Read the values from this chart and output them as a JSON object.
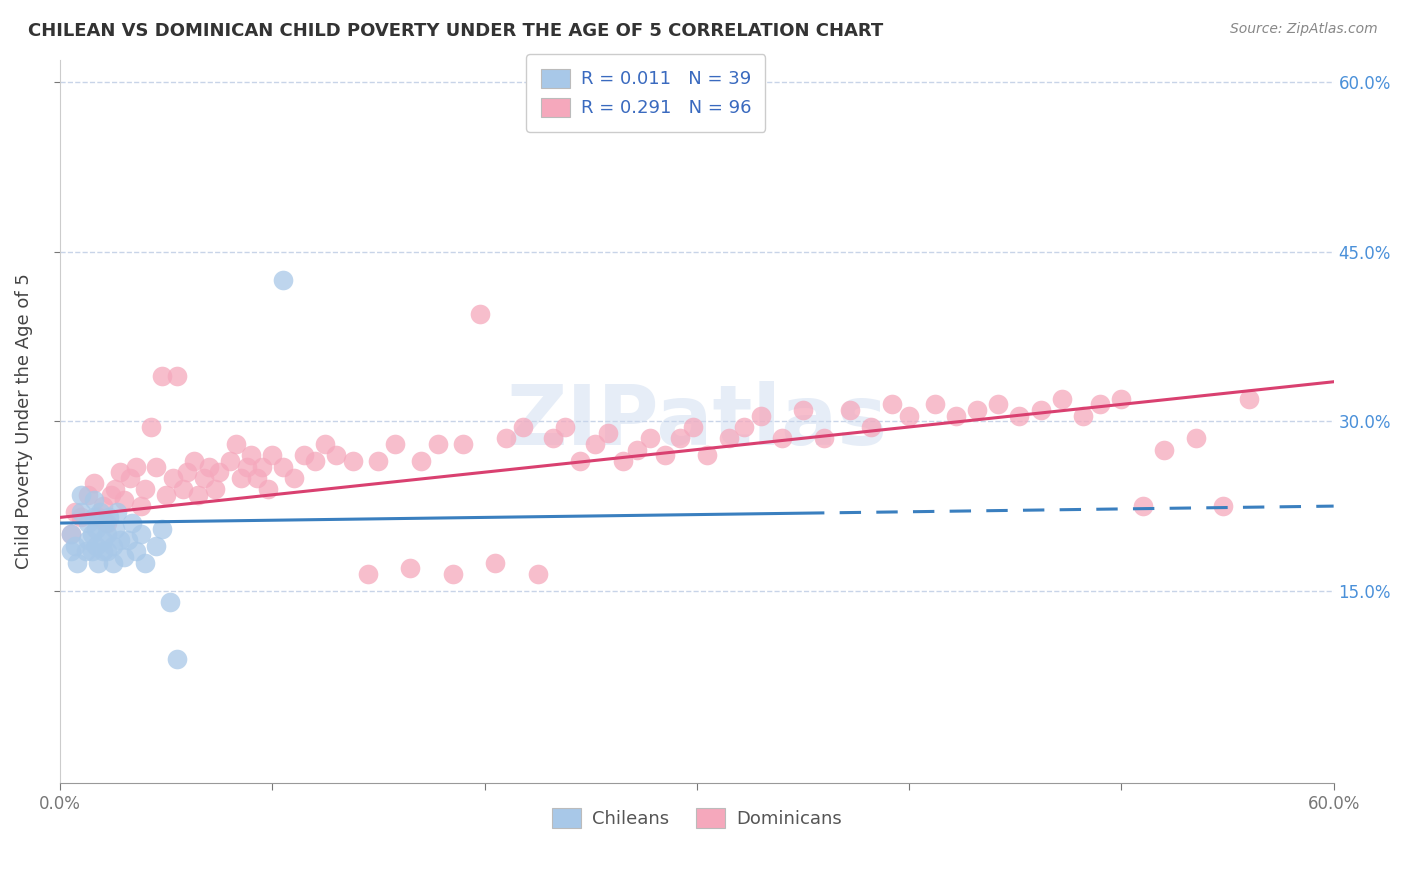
{
  "title": "CHILEAN VS DOMINICAN CHILD POVERTY UNDER THE AGE OF 5 CORRELATION CHART",
  "source": "Source: ZipAtlas.com",
  "ylabel": "Child Poverty Under the Age of 5",
  "xlim": [
    0.0,
    0.6
  ],
  "ylim": [
    -0.02,
    0.62
  ],
  "xticks": [
    0.0,
    0.1,
    0.2,
    0.3,
    0.4,
    0.5,
    0.6
  ],
  "xticklabels": [
    "0.0%",
    "",
    "",
    "",
    "",
    "",
    "60.0%"
  ],
  "yticks_right": [
    0.15,
    0.3,
    0.45,
    0.6
  ],
  "ytick_right_labels": [
    "15.0%",
    "30.0%",
    "45.0%",
    "60.0%"
  ],
  "chilean_color": "#a8c8e8",
  "dominican_color": "#f5a8bc",
  "chilean_line_color": "#3a7fbf",
  "dominican_line_color": "#d94070",
  "background_color": "#ffffff",
  "grid_color": "#c8d4e8",
  "watermark": "ZIPatlas",
  "chilean_x": [
    0.005,
    0.005,
    0.007,
    0.008,
    0.01,
    0.01,
    0.012,
    0.013,
    0.013,
    0.015,
    0.015,
    0.016,
    0.016,
    0.017,
    0.017,
    0.018,
    0.019,
    0.02,
    0.02,
    0.021,
    0.022,
    0.022,
    0.023,
    0.025,
    0.025,
    0.026,
    0.027,
    0.028,
    0.03,
    0.032,
    0.034,
    0.036,
    0.038,
    0.04,
    0.045,
    0.048,
    0.052,
    0.055,
    0.105
  ],
  "chilean_y": [
    0.185,
    0.2,
    0.19,
    0.175,
    0.22,
    0.235,
    0.185,
    0.195,
    0.21,
    0.185,
    0.2,
    0.215,
    0.23,
    0.19,
    0.205,
    0.175,
    0.22,
    0.185,
    0.195,
    0.21,
    0.185,
    0.2,
    0.215,
    0.175,
    0.19,
    0.205,
    0.22,
    0.195,
    0.18,
    0.195,
    0.21,
    0.185,
    0.2,
    0.175,
    0.19,
    0.205,
    0.14,
    0.09,
    0.425
  ],
  "dominican_x": [
    0.005,
    0.007,
    0.01,
    0.013,
    0.016,
    0.018,
    0.02,
    0.022,
    0.024,
    0.026,
    0.028,
    0.03,
    0.033,
    0.036,
    0.038,
    0.04,
    0.043,
    0.045,
    0.048,
    0.05,
    0.053,
    0.055,
    0.058,
    0.06,
    0.063,
    0.065,
    0.068,
    0.07,
    0.073,
    0.075,
    0.08,
    0.083,
    0.085,
    0.088,
    0.09,
    0.093,
    0.095,
    0.098,
    0.1,
    0.105,
    0.11,
    0.115,
    0.12,
    0.125,
    0.13,
    0.138,
    0.145,
    0.15,
    0.158,
    0.165,
    0.17,
    0.178,
    0.185,
    0.19,
    0.198,
    0.205,
    0.21,
    0.218,
    0.225,
    0.232,
    0.238,
    0.245,
    0.252,
    0.258,
    0.265,
    0.272,
    0.278,
    0.285,
    0.292,
    0.298,
    0.305,
    0.315,
    0.322,
    0.33,
    0.34,
    0.35,
    0.36,
    0.372,
    0.382,
    0.392,
    0.4,
    0.412,
    0.422,
    0.432,
    0.442,
    0.452,
    0.462,
    0.472,
    0.482,
    0.49,
    0.5,
    0.51,
    0.52,
    0.535,
    0.548,
    0.56
  ],
  "dominican_y": [
    0.2,
    0.22,
    0.215,
    0.235,
    0.245,
    0.215,
    0.225,
    0.21,
    0.235,
    0.24,
    0.255,
    0.23,
    0.25,
    0.26,
    0.225,
    0.24,
    0.295,
    0.26,
    0.34,
    0.235,
    0.25,
    0.34,
    0.24,
    0.255,
    0.265,
    0.235,
    0.25,
    0.26,
    0.24,
    0.255,
    0.265,
    0.28,
    0.25,
    0.26,
    0.27,
    0.25,
    0.26,
    0.24,
    0.27,
    0.26,
    0.25,
    0.27,
    0.265,
    0.28,
    0.27,
    0.265,
    0.165,
    0.265,
    0.28,
    0.17,
    0.265,
    0.28,
    0.165,
    0.28,
    0.395,
    0.175,
    0.285,
    0.295,
    0.165,
    0.285,
    0.295,
    0.265,
    0.28,
    0.29,
    0.265,
    0.275,
    0.285,
    0.27,
    0.285,
    0.295,
    0.27,
    0.285,
    0.295,
    0.305,
    0.285,
    0.31,
    0.285,
    0.31,
    0.295,
    0.315,
    0.305,
    0.315,
    0.305,
    0.31,
    0.315,
    0.305,
    0.31,
    0.32,
    0.305,
    0.315,
    0.32,
    0.225,
    0.275,
    0.285,
    0.225,
    0.32
  ],
  "chilean_line_solid_end": 0.35,
  "chilean_line_intercept": 0.21,
  "chilean_line_slope": 0.025,
  "dominican_line_intercept": 0.215,
  "dominican_line_slope": 0.2
}
